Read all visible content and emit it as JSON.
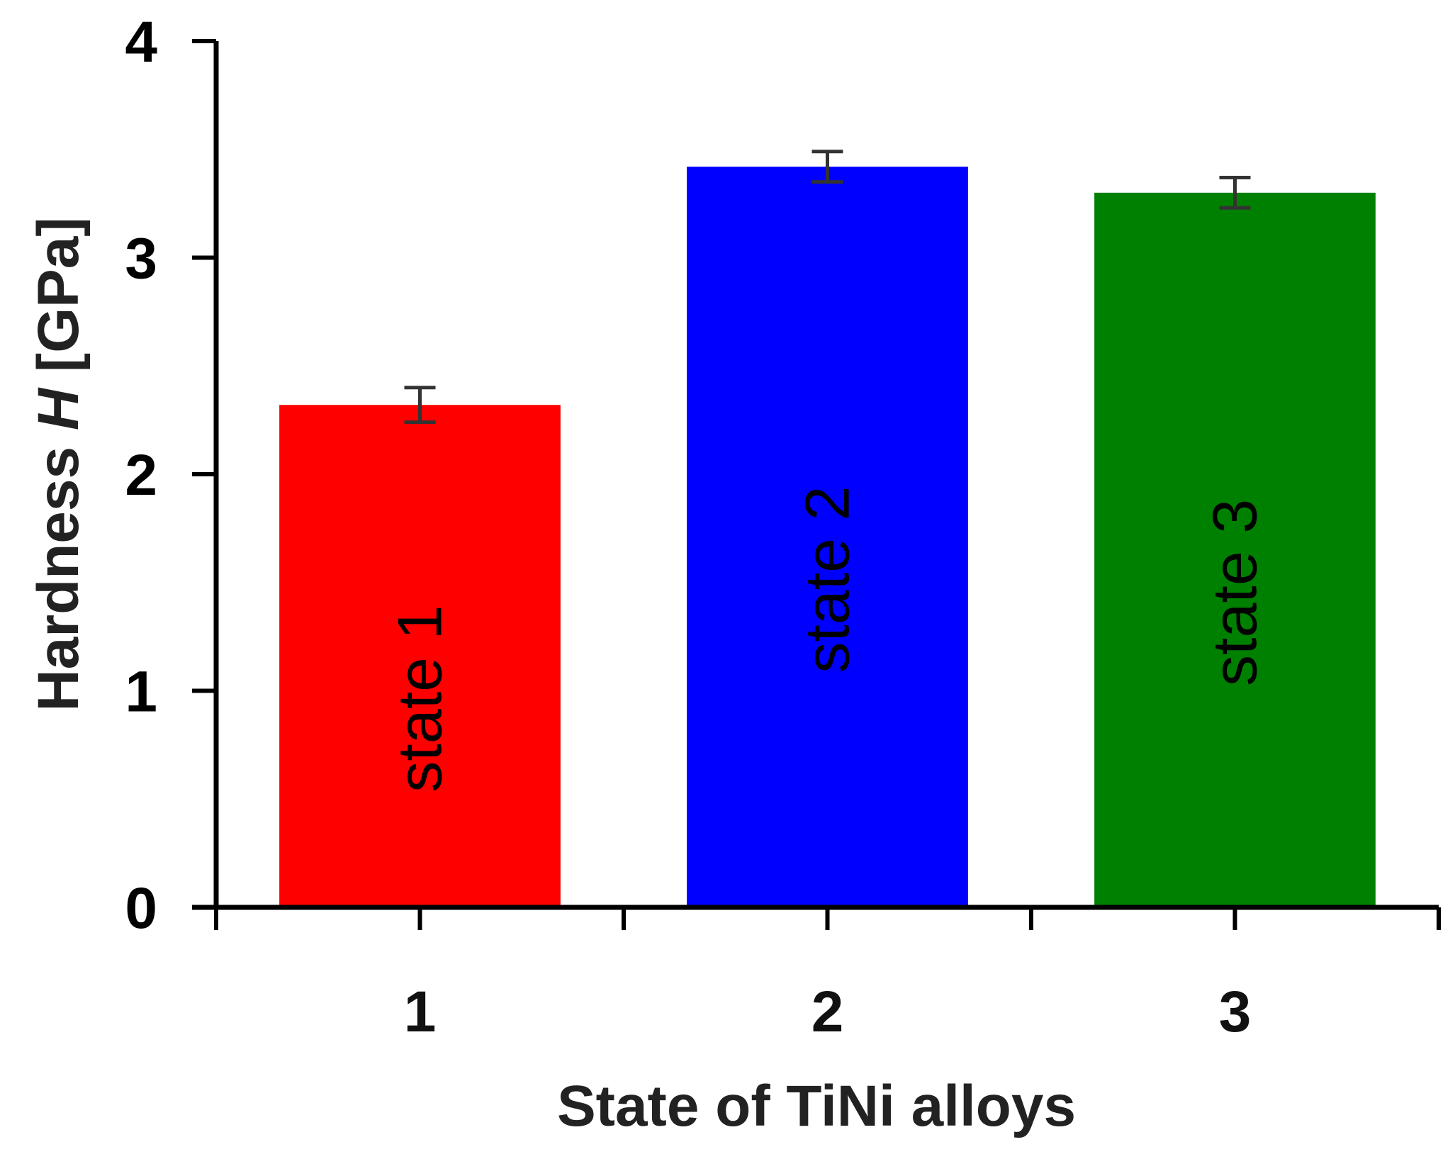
{
  "chart_data": {
    "type": "bar",
    "categories": [
      "1",
      "2",
      "3"
    ],
    "values": [
      2.32,
      3.42,
      3.3
    ],
    "errors": [
      0.08,
      0.07,
      0.07
    ],
    "bar_labels": [
      "state 1",
      "state 2",
      "state 3"
    ],
    "bar_colors": [
      "#ff0000",
      "#0000ff",
      "#008000"
    ],
    "xlabel": "State of TiNi alloys",
    "ylabel_prefix": "Hardness ",
    "ylabel_symbol": "H",
    "ylabel_suffix": " [GPa]",
    "ylim": [
      0,
      4
    ],
    "yticks": [
      "0",
      "1",
      "2",
      "3",
      "4"
    ],
    "grid": false,
    "legend": "none"
  }
}
